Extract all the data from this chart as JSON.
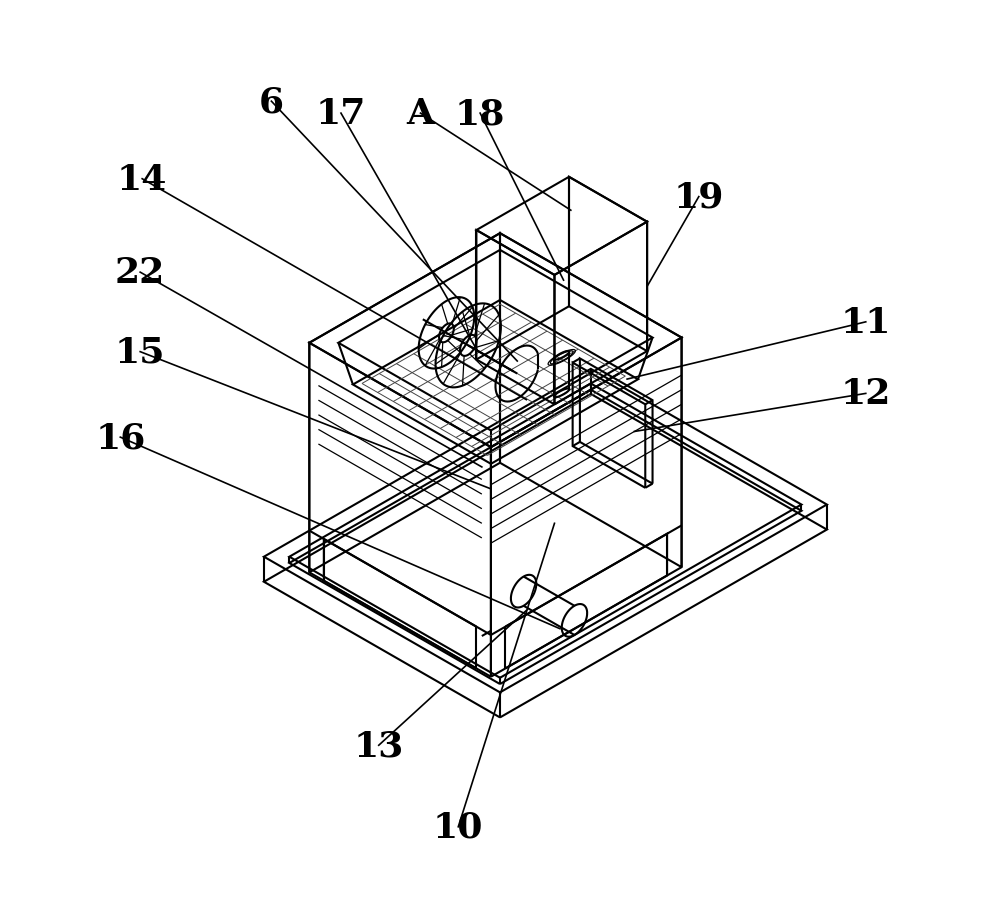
{
  "background_color": "#ffffff",
  "line_color": "#000000",
  "lw": 1.5,
  "lw_thin": 0.9,
  "figsize": [
    10.0,
    9.2
  ],
  "dpi": 100
}
